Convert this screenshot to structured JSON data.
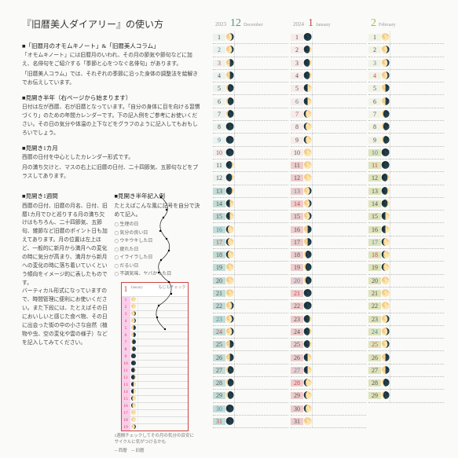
{
  "title": "『旧暦美人ダイアリー』の使い方",
  "sections": [
    {
      "hd": "■「旧暦月のオモムキノート」&「旧暦美人コラム」",
      "paras": [
        "「オモムキノート」には旧暦月のいわれ、その月の節気や節句などに加え、名俳句をご紹介する「季節と心をつなぐ名俳句」があります。",
        "「旧暦美人コラム」では、それぞれの季節に沿った身体の調整法を絵解きでお伝えしています。"
      ]
    },
    {
      "hd": "■見開き半年（右ページから始まります）",
      "paras": [
        "日付は左が西暦、右が旧暦となっています。「自分の身体に目を向ける習慣づくり」のための年間カレンダーです。下の記入例をご参考にお使いください。その日の気分や体温の上下などをグラフのように記入してもおもしろいでしょう。"
      ]
    },
    {
      "hd": "■見開き1カ月",
      "paras": [
        "西暦の日付を中心としたカレンダー形式です。",
        "月の満ち欠けと、マスの右上に旧暦の日付、二十四節気、五節句などをプラスしてあります。"
      ]
    }
  ],
  "weekly_hd": "■見開き1週間",
  "weekly_para": "西暦の日付、旧暦の月名、日付、旧暦1カ月でひと巡りする月の満ち欠けはもちろん、二十四節気、五節句、雑節など旧暦のポイント日も加えてあります。月の位置は左上ほど、一般的に新月から満月への変化の時に気分が高まり、満月から新月への変化の時に落ち着いていくという傾向をイメージ的に表したものです。\nバーティカル形式になっていますので、時間管理に便利にお使いください。また下段には、たとえばその日においしいと感じた食べ物、その日に出会った街の中の小さな自然（植物や虫、空の変化や雲の様子）などを記入してみてください。",
  "example_hd": "■見開き半年記入例",
  "example_para": "たとえばこんな風に記号を自分で決めて記入。",
  "legend": [
    "生理の日",
    "気分の良い日",
    "ウキウキした日",
    "疲れた日",
    "イライラした日",
    "だるい日",
    "不調気味、ヤバかった日"
  ],
  "footnote_a": "1週間チェックしてその月の気分の目安に\nサイクルに気がつけるかも",
  "footnote_b": "─ 西暦　─ 旧暦",
  "months": [
    {
      "year": "2023",
      "num": "12",
      "name": "December",
      "cls": "m12",
      "hlStart": 13,
      "hlEnd": 31,
      "days": [
        {
          "d": 1,
          "w": 5,
          "m": "🌖"
        },
        {
          "d": 2,
          "w": 6,
          "m": "🌖"
        },
        {
          "d": 3,
          "w": 0,
          "m": "🌗"
        },
        {
          "d": 4,
          "w": 1,
          "m": "🌗"
        },
        {
          "d": 5,
          "w": 2,
          "m": "🌘"
        },
        {
          "d": 6,
          "w": 3,
          "m": "🌘"
        },
        {
          "d": 7,
          "w": 4,
          "m": "🌘"
        },
        {
          "d": 8,
          "w": 5,
          "m": "🌑"
        },
        {
          "d": 9,
          "w": 6,
          "m": "🌑"
        },
        {
          "d": 10,
          "w": 0,
          "m": "🌑"
        },
        {
          "d": 11,
          "w": 1,
          "m": "🌒"
        },
        {
          "d": 12,
          "w": 2,
          "m": "🌒"
        },
        {
          "d": 13,
          "w": 3,
          "m": "🌒"
        },
        {
          "d": 14,
          "w": 4,
          "m": "🌓"
        },
        {
          "d": 15,
          "w": 5,
          "m": "🌓"
        },
        {
          "d": 16,
          "w": 6,
          "m": "🌔"
        },
        {
          "d": 17,
          "w": 0,
          "m": "🌔"
        },
        {
          "d": 18,
          "w": 1,
          "m": "🌔"
        },
        {
          "d": 19,
          "w": 2,
          "m": "🌕"
        },
        {
          "d": 20,
          "w": 3,
          "m": "🌕"
        },
        {
          "d": 21,
          "w": 4,
          "m": "🌕"
        },
        {
          "d": 22,
          "w": 5,
          "m": "🌖"
        },
        {
          "d": 23,
          "w": 6,
          "m": "🌖"
        },
        {
          "d": 24,
          "w": 0,
          "m": "🌖"
        },
        {
          "d": 25,
          "w": 1,
          "m": "🌗"
        },
        {
          "d": 26,
          "w": 2,
          "m": "🌗"
        },
        {
          "d": 27,
          "w": 3,
          "m": "🌘"
        },
        {
          "d": 28,
          "w": 4,
          "m": "🌘"
        },
        {
          "d": 29,
          "w": 5,
          "m": "🌘"
        },
        {
          "d": 30,
          "w": 6,
          "m": "🌑"
        },
        {
          "d": 31,
          "w": 0,
          "m": "🌑"
        }
      ]
    },
    {
      "year": "2024",
      "num": "1",
      "name": "January",
      "cls": "m1",
      "hlStart": 11,
      "hlEnd": 31,
      "days": [
        {
          "d": 1,
          "w": 1,
          "m": "🌑"
        },
        {
          "d": 2,
          "w": 2,
          "m": "🌒"
        },
        {
          "d": 3,
          "w": 3,
          "m": "🌒"
        },
        {
          "d": 4,
          "w": 4,
          "m": "🌒"
        },
        {
          "d": 5,
          "w": 5,
          "m": "🌓"
        },
        {
          "d": 6,
          "w": 6,
          "m": "🌓"
        },
        {
          "d": 7,
          "w": 0,
          "m": "🌔"
        },
        {
          "d": 8,
          "w": 1,
          "m": "🌔"
        },
        {
          "d": 9,
          "w": 2,
          "m": "🌔"
        },
        {
          "d": 10,
          "w": 3,
          "m": "🌕"
        },
        {
          "d": 11,
          "w": 4,
          "m": "🌕"
        },
        {
          "d": 12,
          "w": 5,
          "m": "🌕"
        },
        {
          "d": 13,
          "w": 6,
          "m": "🌖"
        },
        {
          "d": 14,
          "w": 0,
          "m": "🌖"
        },
        {
          "d": 15,
          "w": 1,
          "m": "🌖"
        },
        {
          "d": 16,
          "w": 2,
          "m": "🌗"
        },
        {
          "d": 17,
          "w": 3,
          "m": "🌗"
        },
        {
          "d": 18,
          "w": 4,
          "m": "🌘"
        },
        {
          "d": 19,
          "w": 5,
          "m": "🌘"
        },
        {
          "d": 20,
          "w": 6,
          "m": "🌘"
        },
        {
          "d": 21,
          "w": 0,
          "m": "🌑"
        },
        {
          "d": 22,
          "w": 1,
          "m": "🌑"
        },
        {
          "d": 23,
          "w": 2,
          "m": "🌒"
        },
        {
          "d": 24,
          "w": 3,
          "m": "🌒"
        },
        {
          "d": 25,
          "w": 4,
          "m": "🌒"
        },
        {
          "d": 26,
          "w": 5,
          "m": "🌓"
        },
        {
          "d": 27,
          "w": 6,
          "m": "🌓"
        },
        {
          "d": 28,
          "w": 0,
          "m": "🌔"
        },
        {
          "d": 29,
          "w": 1,
          "m": "🌔"
        },
        {
          "d": 30,
          "w": 2,
          "m": "🌔"
        },
        {
          "d": 31,
          "w": 3,
          "m": "🌕"
        }
      ]
    },
    {
      "year": "",
      "num": "2",
      "name": "February",
      "cls": "m2",
      "hlStart": 10,
      "hlEnd": 29,
      "days": [
        {
          "d": 1,
          "w": 4,
          "m": "🌕"
        },
        {
          "d": 2,
          "w": 5,
          "m": "🌖"
        },
        {
          "d": 3,
          "w": 6,
          "m": "🌖"
        },
        {
          "d": 4,
          "w": 0,
          "m": "🌖"
        },
        {
          "d": 5,
          "w": 1,
          "m": "🌗"
        },
        {
          "d": 6,
          "w": 2,
          "m": "🌗"
        },
        {
          "d": 7,
          "w": 3,
          "m": "🌘"
        },
        {
          "d": 8,
          "w": 4,
          "m": "🌘"
        },
        {
          "d": 9,
          "w": 5,
          "m": "🌘"
        },
        {
          "d": 10,
          "w": 6,
          "m": "🌑"
        },
        {
          "d": 11,
          "w": 0,
          "m": "🌑"
        },
        {
          "d": 12,
          "w": 1,
          "m": "🌒"
        },
        {
          "d": 13,
          "w": 2,
          "m": "🌒"
        },
        {
          "d": 14,
          "w": 3,
          "m": "🌒"
        },
        {
          "d": 15,
          "w": 4,
          "m": "🌓"
        },
        {
          "d": 16,
          "w": 5,
          "m": "🌓"
        },
        {
          "d": 17,
          "w": 6,
          "m": "🌔"
        },
        {
          "d": 18,
          "w": 0,
          "m": "🌔"
        },
        {
          "d": 19,
          "w": 1,
          "m": "🌔"
        },
        {
          "d": 20,
          "w": 2,
          "m": "🌕"
        },
        {
          "d": 21,
          "w": 3,
          "m": "🌕"
        },
        {
          "d": 22,
          "w": 4,
          "m": "🌕"
        },
        {
          "d": 23,
          "w": 5,
          "m": "🌖"
        },
        {
          "d": 24,
          "w": 6,
          "m": "🌖"
        },
        {
          "d": 25,
          "w": 0,
          "m": "🌖"
        },
        {
          "d": 26,
          "w": 1,
          "m": "🌗"
        },
        {
          "d": 27,
          "w": 2,
          "m": "🌗"
        },
        {
          "d": 28,
          "w": 3,
          "m": "🌘"
        },
        {
          "d": 29,
          "w": 4,
          "m": "🌘"
        }
      ]
    }
  ],
  "example_month": {
    "num": "1",
    "name": "January",
    "sub": "もじもチェック",
    "days": [
      1,
      2,
      3,
      4,
      5,
      6,
      7,
      8,
      9,
      10,
      11,
      12,
      13,
      14,
      15,
      16,
      17,
      18,
      19
    ],
    "moons": [
      "🌕",
      "🌕",
      "🌖",
      "🌖",
      "🌗",
      "🌗",
      "🌘",
      "🌘",
      "🌑",
      "🌑",
      "🌒",
      "🌒",
      "🌓",
      "🌓",
      "🌔",
      "🌔",
      "🌕",
      "🌕",
      "🌖"
    ]
  }
}
